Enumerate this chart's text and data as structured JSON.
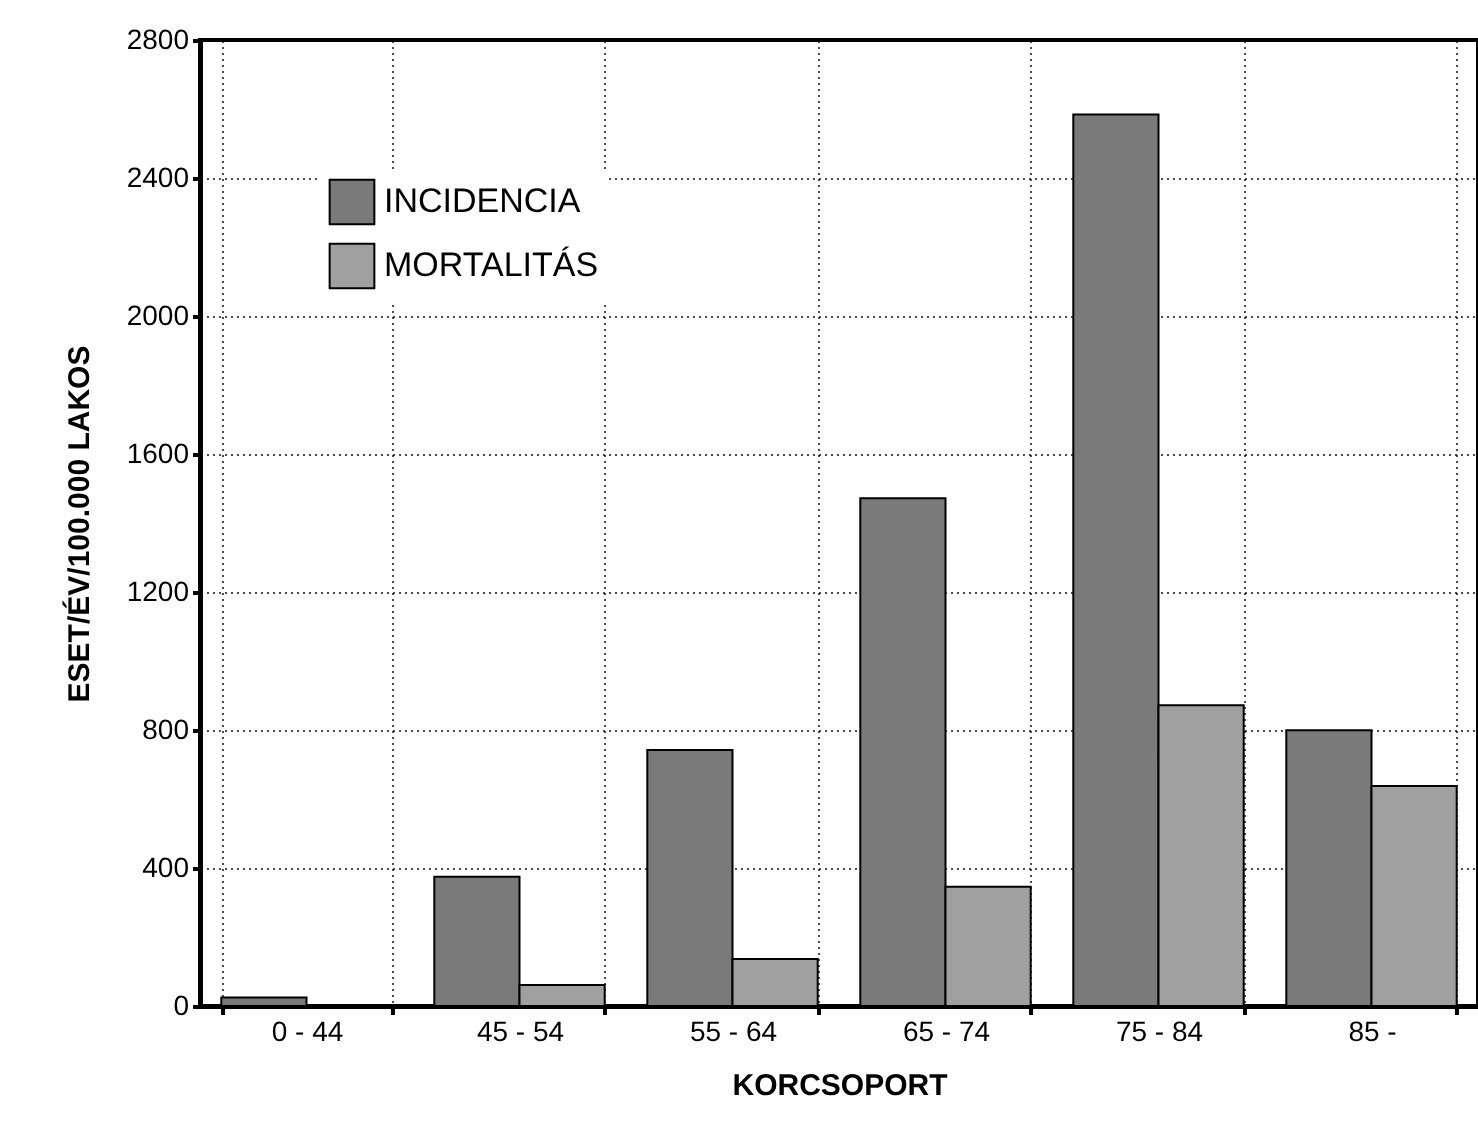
{
  "chart_data": {
    "type": "bar",
    "xlabel": "KORCSOPORT",
    "ylabel": "ESET/ÉV/100.000 LAKOS",
    "categories": [
      "0 - 44",
      "45 - 54",
      "55 - 64",
      "65 - 74",
      "75 - 84",
      "85 -"
    ],
    "series": [
      {
        "name": "INCIDENCIA",
        "color": "#7a7a7a",
        "values": [
          25,
          375,
          742,
          1472,
          2584,
          799
        ]
      },
      {
        "name": "MORTALITÁS",
        "color": "#a0a0a0",
        "values": [
          null,
          61,
          136,
          346,
          872,
          638
        ]
      }
    ],
    "ylim": [
      0,
      2800
    ],
    "yticks": [
      0,
      400,
      800,
      1200,
      1600,
      2000,
      2400,
      2800
    ],
    "grid": true,
    "legend": "top left"
  }
}
